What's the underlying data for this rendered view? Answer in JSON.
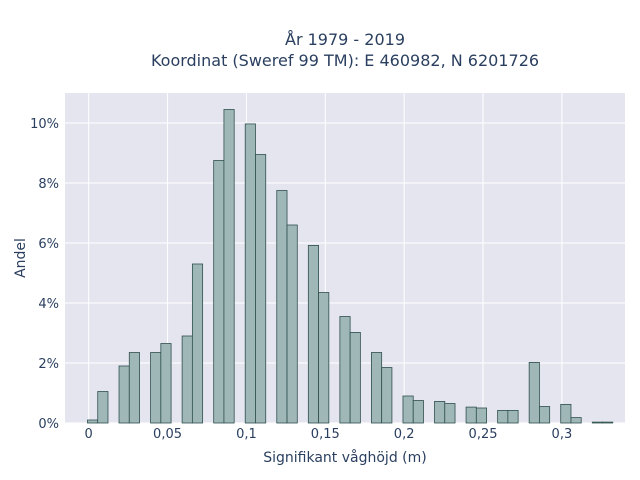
{
  "chart_data": {
    "type": "bar",
    "title_line1": "År 1979 - 2019",
    "title_line2": "Koordinat (Sweref 99 TM): E 460982, N 6201726",
    "xlabel": "Signifikant våghöjd (m)",
    "ylabel": "Andel",
    "xlim": [
      -0.015,
      0.34
    ],
    "ylim": [
      0,
      11
    ],
    "x_ticks": [
      {
        "value": 0,
        "label": "0"
      },
      {
        "value": 0.05,
        "label": "0,05"
      },
      {
        "value": 0.1,
        "label": "0,1"
      },
      {
        "value": 0.15,
        "label": "0,15"
      },
      {
        "value": 0.2,
        "label": "0,2"
      },
      {
        "value": 0.25,
        "label": "0,25"
      },
      {
        "value": 0.3,
        "label": "0,3"
      }
    ],
    "y_ticks": [
      {
        "value": 0,
        "label": "0%"
      },
      {
        "value": 2,
        "label": "2%"
      },
      {
        "value": 4,
        "label": "4%"
      },
      {
        "value": 6,
        "label": "6%"
      },
      {
        "value": 8,
        "label": "8%"
      },
      {
        "value": 10,
        "label": "10%"
      }
    ],
    "bin_width": 0.0065,
    "bins": [
      {
        "x": 0.0025,
        "y": 0.1
      },
      {
        "x": 0.009,
        "y": 1.05
      },
      {
        "x": 0.0225,
        "y": 1.9
      },
      {
        "x": 0.029,
        "y": 2.35
      },
      {
        "x": 0.0425,
        "y": 2.35
      },
      {
        "x": 0.049,
        "y": 2.65
      },
      {
        "x": 0.0625,
        "y": 2.9
      },
      {
        "x": 0.069,
        "y": 5.3
      },
      {
        "x": 0.0825,
        "y": 8.75
      },
      {
        "x": 0.089,
        "y": 10.45
      },
      {
        "x": 0.1025,
        "y": 9.97
      },
      {
        "x": 0.109,
        "y": 8.95
      },
      {
        "x": 0.1225,
        "y": 7.75
      },
      {
        "x": 0.129,
        "y": 6.6
      },
      {
        "x": 0.1425,
        "y": 5.92
      },
      {
        "x": 0.149,
        "y": 4.35
      },
      {
        "x": 0.1625,
        "y": 3.55
      },
      {
        "x": 0.169,
        "y": 3.02
      },
      {
        "x": 0.1825,
        "y": 2.35
      },
      {
        "x": 0.189,
        "y": 1.85
      },
      {
        "x": 0.2025,
        "y": 0.9
      },
      {
        "x": 0.209,
        "y": 0.75
      },
      {
        "x": 0.2225,
        "y": 0.72
      },
      {
        "x": 0.229,
        "y": 0.65
      },
      {
        "x": 0.2425,
        "y": 0.53
      },
      {
        "x": 0.249,
        "y": 0.5
      },
      {
        "x": 0.2625,
        "y": 0.42
      },
      {
        "x": 0.269,
        "y": 0.42
      },
      {
        "x": 0.2825,
        "y": 2.02
      },
      {
        "x": 0.289,
        "y": 0.55
      },
      {
        "x": 0.3025,
        "y": 0.62
      },
      {
        "x": 0.309,
        "y": 0.18
      },
      {
        "x": 0.3225,
        "y": 0.03
      },
      {
        "x": 0.329,
        "y": 0.03
      }
    ],
    "colors": {
      "plot_bg": "#e5e5f0",
      "grid": "#ffffff",
      "bar_fill": "#9fb8b7",
      "bar_stroke": "#2f4f4f",
      "text": "#2a3f5f"
    }
  }
}
